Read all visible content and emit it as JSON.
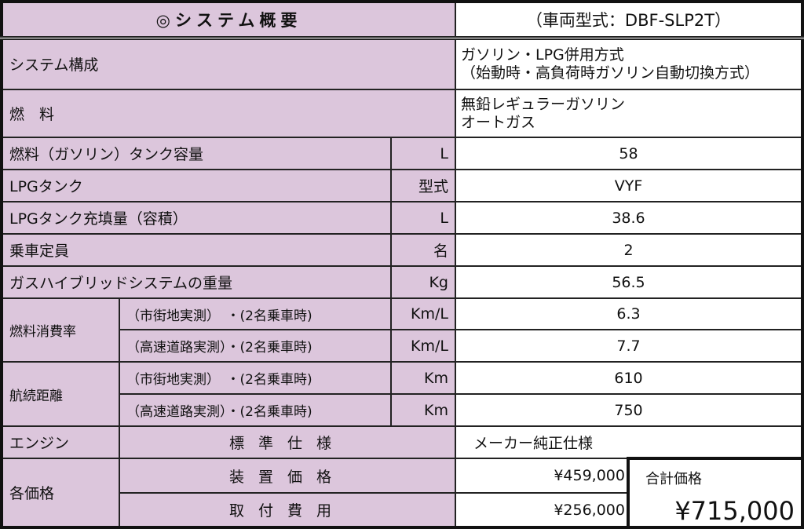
{
  "header": {
    "title": "◎システム概要",
    "model": "（車両型式：DBF-SLP2T）"
  },
  "system": {
    "label": "システム構成",
    "value_line1": "ガソリン・LPG併用方式",
    "value_line2": "（始動時・高負荷時ガソリン自動切換方式）"
  },
  "fuel": {
    "label": "燃　料",
    "value_line1": "無鉛レギュラーガソリン",
    "value_line2": "オートガス"
  },
  "rows": [
    {
      "label": "燃料（ガソリン）タンク容量",
      "unit": "L",
      "value": "58"
    },
    {
      "label": "LPGタンク",
      "unit": "型式",
      "value": "VYF"
    },
    {
      "label": "LPGタンク充填量（容積）",
      "unit": "L",
      "value": "38.6"
    },
    {
      "label": "乗車定員",
      "unit": "名",
      "value": "2"
    },
    {
      "label": "ガスハイブリッドシステムの重量",
      "unit": "Kg",
      "value": "56.5"
    }
  ],
  "consumption": {
    "label": "燃料消費率",
    "rows": [
      {
        "cond": "（市街地実測）　・(2名乗車時)",
        "unit": "Km/L",
        "value": "6.3"
      },
      {
        "cond": "（高速道路実測）・(2名乗車時)",
        "unit": "Km/L",
        "value": "7.7"
      }
    ]
  },
  "range": {
    "label": "航続距離",
    "rows": [
      {
        "cond": "（市街地実測）　・(2名乗車時)",
        "unit": "Km",
        "value": "610"
      },
      {
        "cond": "（高速道路実測）・(2名乗車時)",
        "unit": "Km",
        "value": "750"
      }
    ]
  },
  "engine": {
    "label": "エンジン",
    "spec": "標準仕様",
    "value": "メーカー純正仕様"
  },
  "price": {
    "label": "各価格",
    "device_label": "装置価格",
    "device_value": "¥459,000",
    "install_label": "取付費用",
    "install_value": "¥256,000",
    "total_label": "合計価格",
    "total_value": "¥715,000"
  },
  "colors": {
    "label_bg": "#dcc6dc",
    "value_bg": "#ffffff",
    "border": "#111111"
  }
}
